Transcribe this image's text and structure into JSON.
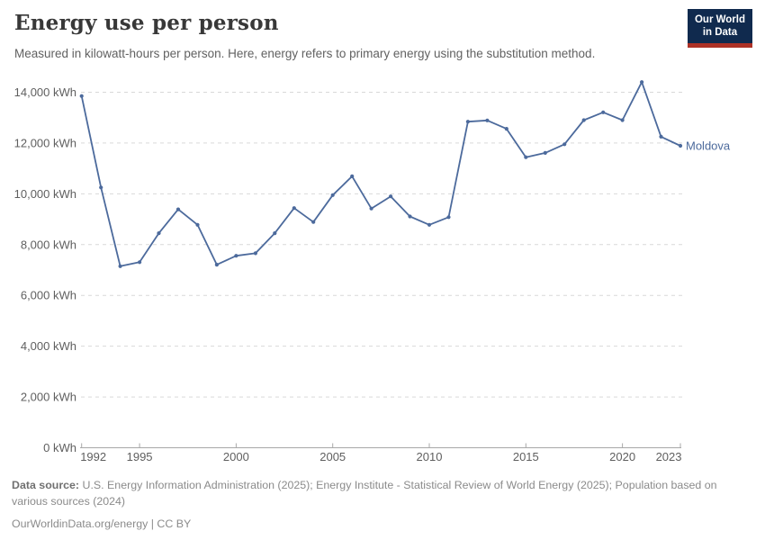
{
  "header": {
    "title": "Energy use per person",
    "subtitle": "Measured in kilowatt-hours per person. Here, energy refers to primary energy using the substitution method."
  },
  "logo": {
    "line1": "Our World",
    "line2": "in Data"
  },
  "chart_data": {
    "type": "line",
    "title": "Energy use per person",
    "unit": "kWh",
    "x": [
      1992,
      1993,
      1994,
      1995,
      1996,
      1997,
      1998,
      1999,
      2000,
      2001,
      2002,
      2003,
      2004,
      2005,
      2006,
      2007,
      2008,
      2009,
      2010,
      2011,
      2012,
      2013,
      2014,
      2015,
      2016,
      2017,
      2018,
      2019,
      2020,
      2021,
      2022,
      2023
    ],
    "series": [
      {
        "name": "Moldova",
        "values": [
          13850,
          10250,
          7150,
          7310,
          8450,
          9390,
          8780,
          7210,
          7560,
          7660,
          8450,
          9440,
          8890,
          9950,
          10690,
          9420,
          9900,
          9110,
          8780,
          9080,
          12840,
          12890,
          12560,
          11440,
          11610,
          11950,
          12900,
          13210,
          12900,
          14400,
          12250,
          11890
        ]
      }
    ],
    "ylim": [
      0,
      14000
    ],
    "yticks": [
      0,
      2000,
      4000,
      6000,
      8000,
      10000,
      12000,
      14000
    ],
    "ytick_suffix": " kWh",
    "xticks": [
      1992,
      1995,
      2000,
      2005,
      2010,
      2015,
      2020,
      2023
    ],
    "grid": "dashed-horizontal",
    "legend": "end-of-line-label"
  },
  "footer": {
    "source_label": "Data source:",
    "source_text": " U.S. Energy Information Administration (2025); Energy Institute - Statistical Review of World Energy (2025); Population based on various sources (2024)",
    "link_text": "OurWorldinData.org/energy | CC BY"
  },
  "colors": {
    "line": "#4c6a9c",
    "entity_label": "#4c6a9c",
    "grid": "#d9d9d9",
    "axis": "#a8a8a8",
    "tick_text": "#5f5f5f",
    "logo_bg": "#102a4e",
    "logo_red": "#ad3126"
  }
}
